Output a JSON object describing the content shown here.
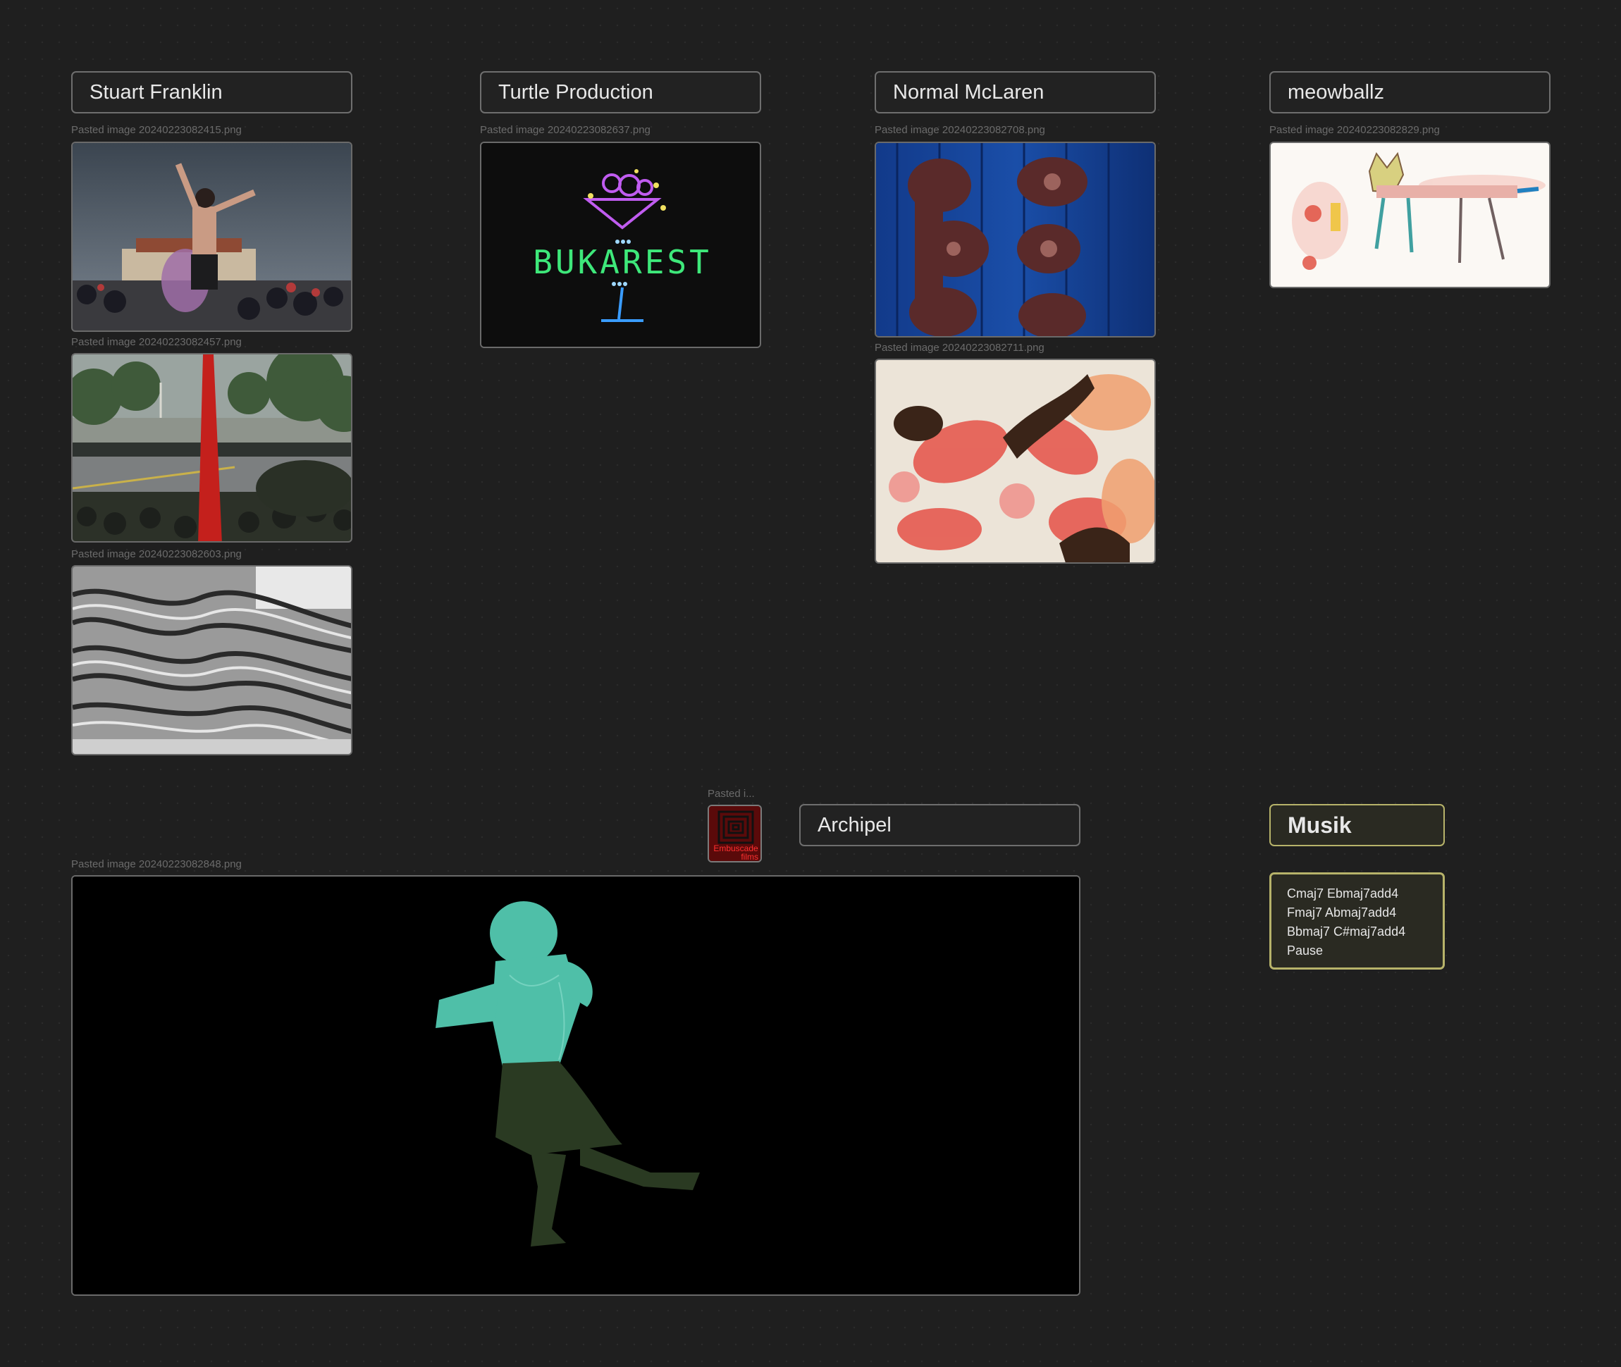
{
  "groups": {
    "stuart_franklin": "Stuart Franklin",
    "turtle_production": "Turtle Production",
    "normal_mclaren": "Normal McLaren",
    "meowballz": "meowballz",
    "archipel": "Archipel",
    "musik": "Musik"
  },
  "images": {
    "sf1": "Pasted image 20240223082415.png",
    "sf2": "Pasted image 20240223082457.png",
    "sf3": "Pasted image 20240223082603.png",
    "tp1": "Pasted image 20240223082637.png",
    "nm1": "Pasted image 20240223082708.png",
    "nm2": "Pasted image 20240223082711.png",
    "mb1": "Pasted image 20240223082829.png",
    "emb": "Pasted i...",
    "ar1": "Pasted image 20240223082848.png"
  },
  "image_text": {
    "bukarest": "BUKAREST",
    "embuscade_line1": "Embuscade",
    "embuscade_line2": "films"
  },
  "musik_note": {
    "lines": [
      "Cmaj7 Ebmaj7add4",
      "Fmaj7 Abmaj7add4",
      "Bbmaj7 C#maj7add4",
      "Pause"
    ]
  },
  "colors": {
    "background": "#1f1f1f",
    "card_border": "#6e6e6e",
    "musik_border": "#b7b36a",
    "label_text": "#6b6b6b"
  }
}
